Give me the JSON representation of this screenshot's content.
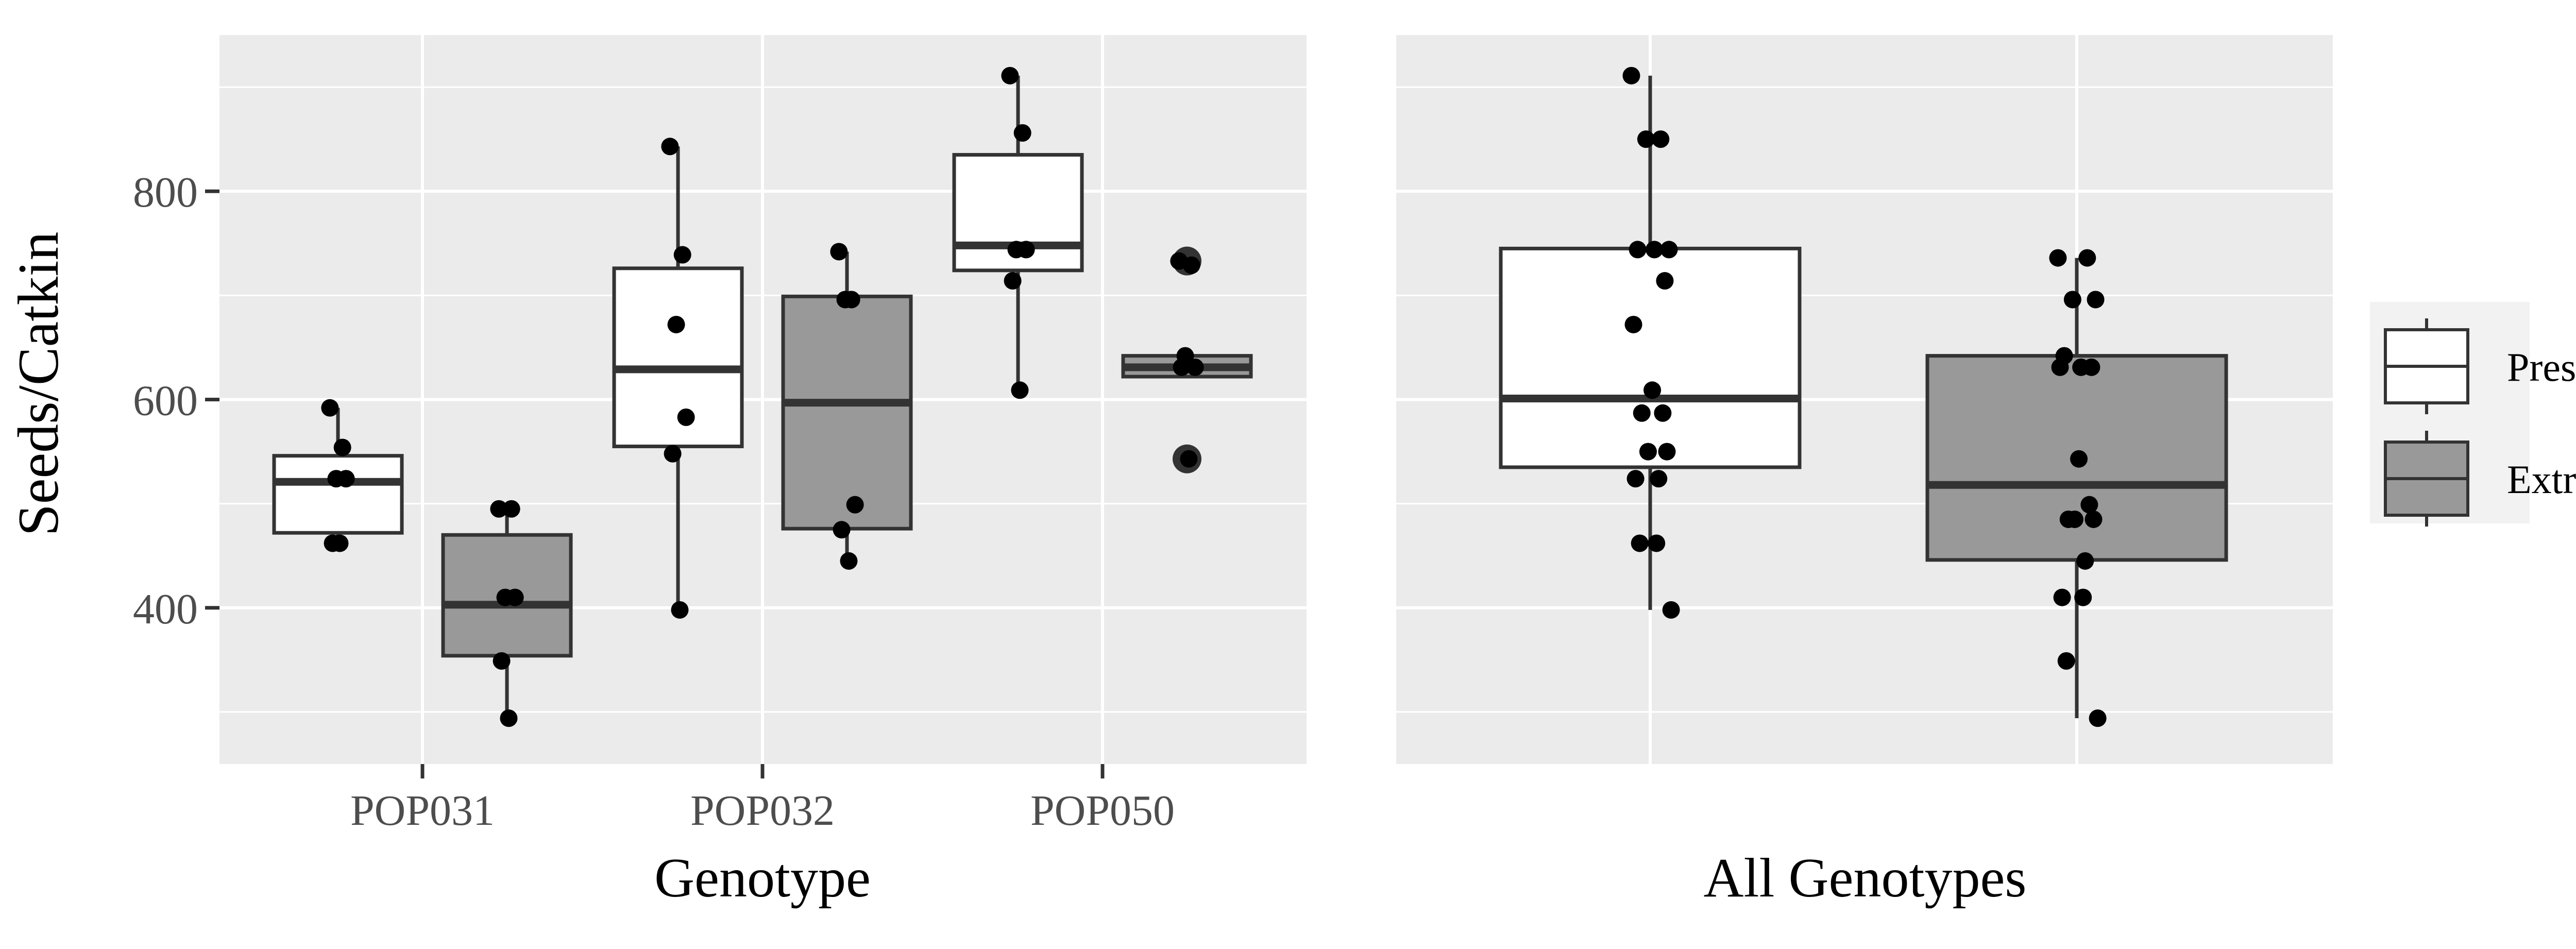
{
  "colors": {
    "panel_background": "#ebebeb",
    "grid": "#ffffff",
    "box_present": "#ffffff",
    "box_extracted": "#999999",
    "outline": "#333333",
    "point": "#000000",
    "text": "#4d4d4d",
    "title_text": "#000000"
  },
  "chart_data": [
    {
      "type": "box",
      "panel": "left",
      "xlabel": "Genotype",
      "ylabel": "Seeds/Catkin",
      "categories": [
        "POP031",
        "POP032",
        "POP050"
      ],
      "yticks": [
        400,
        600,
        800
      ],
      "ylim": [
        250,
        950
      ],
      "grid": true,
      "series": [
        {
          "name": "Present",
          "fill": "#ffffff",
          "boxes": [
            {
              "category": "POP031",
              "whisker_low": 462,
              "q1": 472,
              "median": 521,
              "q3": 546,
              "whisker_high": 592,
              "points": [
                592,
                554,
                524,
                524,
                462,
                462
              ]
            },
            {
              "category": "POP032",
              "whisker_low": 398,
              "q1": 555,
              "median": 629,
              "q3": 726,
              "whisker_high": 843,
              "points": [
                843,
                739,
                672,
                583,
                548,
                398
              ]
            },
            {
              "category": "POP050",
              "whisker_low": 609,
              "q1": 724,
              "median": 748,
              "q3": 835,
              "whisker_high": 911,
              "points": [
                911,
                856,
                744,
                744,
                714,
                609
              ]
            }
          ]
        },
        {
          "name": "Extracted",
          "fill": "#999999",
          "boxes": [
            {
              "category": "POP031",
              "whisker_low": 294,
              "q1": 354,
              "median": 403,
              "q3": 470,
              "whisker_high": 495,
              "points": [
                495,
                495,
                410,
                410,
                349,
                294
              ]
            },
            {
              "category": "POP032",
              "whisker_low": 445,
              "q1": 476,
              "median": 597,
              "q3": 699,
              "whisker_high": 742,
              "points": [
                742,
                696,
                696,
                499,
                475,
                445
              ]
            },
            {
              "category": "POP050",
              "whisker_low": 622,
              "q1": 622,
              "median": 631,
              "q3": 642,
              "whisker_high": 642,
              "points": [
                733,
                729,
                642,
                631,
                631,
                543
              ],
              "outliers": [
                733,
                543
              ]
            }
          ]
        }
      ]
    },
    {
      "type": "box",
      "panel": "right",
      "xlabel": "All Genotypes",
      "ylim": [
        250,
        950
      ],
      "grid": true,
      "series": [
        {
          "name": "Present",
          "fill": "#ffffff",
          "boxes": [
            {
              "whisker_low": 398,
              "q1": 535,
              "median": 601,
              "q3": 745,
              "whisker_high": 911,
              "points": [
                911,
                850,
                850,
                744,
                744,
                744,
                714,
                672,
                609,
                587,
                587,
                550,
                550,
                524,
                524,
                462,
                462,
                398
              ]
            }
          ]
        },
        {
          "name": "Extracted",
          "fill": "#999999",
          "boxes": [
            {
              "whisker_low": 294,
              "q1": 446,
              "median": 518,
              "q3": 642,
              "whisker_high": 736,
              "points": [
                736,
                736,
                696,
                696,
                642,
                631,
                631,
                631,
                543,
                499,
                485,
                485,
                485,
                445,
                410,
                410,
                349,
                294
              ]
            }
          ]
        }
      ]
    }
  ],
  "legend": {
    "position": "right",
    "items": [
      {
        "label": "Present",
        "fill": "#ffffff"
      },
      {
        "label": "Extracted",
        "fill": "#999999"
      }
    ]
  }
}
